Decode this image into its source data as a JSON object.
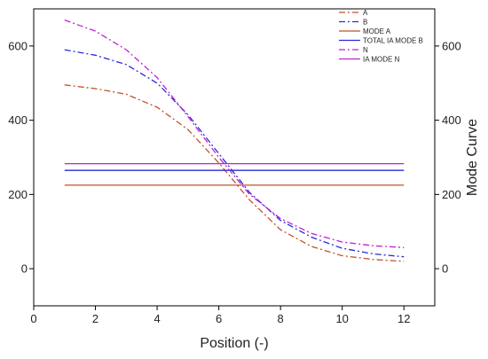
{
  "chart_data": {
    "type": "line",
    "title": "",
    "xlabel": "Position (-)",
    "ylabel": "",
    "ylabel_right": "Mode Curve",
    "xlim": [
      0,
      13
    ],
    "ylim": [
      -100,
      700
    ],
    "xticks": [
      0,
      2,
      4,
      6,
      8,
      10,
      12
    ],
    "yticks": [
      0,
      200,
      400,
      600
    ],
    "yticks_right": [
      0,
      200,
      400,
      600
    ],
    "grid": false,
    "legend_position": "top-right",
    "series": [
      {
        "name": "A",
        "color": "#c0522a",
        "dash": "dash-dot",
        "x": [
          1,
          2,
          3,
          4,
          5,
          6,
          7,
          8,
          9,
          10,
          11,
          12
        ],
        "y": [
          495,
          485,
          470,
          435,
          375,
          285,
          185,
          105,
          60,
          35,
          25,
          20
        ]
      },
      {
        "name": "B",
        "color": "#2a2ad6",
        "dash": "dash-dot",
        "x": [
          1,
          2,
          3,
          4,
          5,
          6,
          7,
          8,
          9,
          10,
          11,
          12
        ],
        "y": [
          590,
          575,
          550,
          500,
          415,
          310,
          205,
          130,
          85,
          55,
          40,
          32
        ]
      },
      {
        "name": "MODE A",
        "color": "#c0522a",
        "dash": "solid",
        "x": [
          1,
          12
        ],
        "y": [
          225,
          225
        ]
      },
      {
        "name": "TOTAL IA  MODE B",
        "color": "#2a2ad6",
        "dash": "solid",
        "x": [
          1,
          12
        ],
        "y": [
          265,
          265
        ]
      },
      {
        "name": "N",
        "color": "#c021d6",
        "dash": "dash-dot",
        "x": [
          1,
          2,
          3,
          4,
          5,
          6,
          7,
          8,
          9,
          10,
          11,
          12
        ],
        "y": [
          670,
          640,
          590,
          515,
          410,
          300,
          200,
          135,
          95,
          72,
          62,
          57
        ]
      },
      {
        "name": "IA MODE N",
        "color": "#c021d6",
        "dash": "solid",
        "x": [
          1,
          12
        ],
        "y": [
          283,
          283
        ]
      }
    ]
  }
}
